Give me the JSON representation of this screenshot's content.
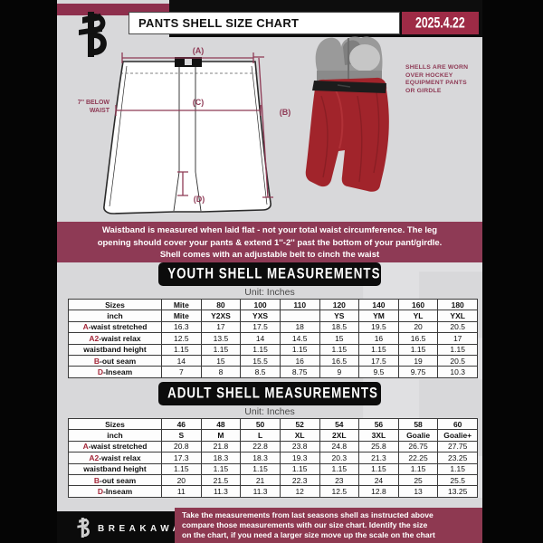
{
  "header": {
    "title": "PANTS SHELL SIZE CHART",
    "date": "2025.4.22"
  },
  "diagram": {
    "label_a": "(A)",
    "label_b": "(B)",
    "label_c": "(C)",
    "label_d": "(D)",
    "below_waist_lines": [
      "7'' BELOW",
      "WAIST"
    ],
    "shell_note_lines": [
      "SHELLS ARE WORN",
      "OVER HOCKEY",
      "EQUIPMENT PANTS",
      "OR GIRDLE"
    ]
  },
  "banner": {
    "lines": [
      "Waistband is measured when laid flat - not your total waist circumference. The leg",
      "opening should cover your pants & extend 1''-2'' past the bottom of your pant/girdle.",
      "Shell comes with an adjustable belt to cinch the waist"
    ]
  },
  "youth": {
    "heading": "YOUTH SHELL MEASUREMENTS",
    "unit": "Unit: Inches",
    "rows": [
      {
        "prefix": "",
        "label": "Sizes",
        "header": true,
        "values": [
          "Mite",
          "80",
          "100",
          "110",
          "120",
          "140",
          "160",
          "180"
        ]
      },
      {
        "prefix": "",
        "label": "inch",
        "header": true,
        "values": [
          "Mite",
          "Y2XS",
          "YXS",
          "",
          "YS",
          "YM",
          "YL",
          "YXL"
        ]
      },
      {
        "prefix": "A",
        "label": "-waist stretched",
        "header": false,
        "values": [
          "16.3",
          "17",
          "17.5",
          "18",
          "18.5",
          "19.5",
          "20",
          "20.5"
        ]
      },
      {
        "prefix": "A2",
        "label": "-waist relax",
        "header": false,
        "values": [
          "12.5",
          "13.5",
          "14",
          "14.5",
          "15",
          "16",
          "16.5",
          "17"
        ]
      },
      {
        "prefix": "",
        "label": "waistband height",
        "header": false,
        "values": [
          "1.15",
          "1.15",
          "1.15",
          "1.15",
          "1.15",
          "1.15",
          "1.15",
          "1.15"
        ]
      },
      {
        "prefix": "B",
        "label": "-out seam",
        "header": false,
        "values": [
          "14",
          "15",
          "15.5",
          "16",
          "16.5",
          "17.5",
          "19",
          "20.5"
        ]
      },
      {
        "prefix": "D",
        "label": "-Inseam",
        "header": false,
        "values": [
          "7",
          "8",
          "8.5",
          "8.75",
          "9",
          "9.5",
          "9.75",
          "10.3"
        ]
      }
    ]
  },
  "adult": {
    "heading": "ADULT SHELL MEASUREMENTS",
    "unit": "Unit: Inches",
    "rows": [
      {
        "prefix": "",
        "label": "Sizes",
        "header": true,
        "values": [
          "46",
          "48",
          "50",
          "52",
          "54",
          "56",
          "58",
          "60"
        ]
      },
      {
        "prefix": "",
        "label": "inch",
        "header": true,
        "values": [
          "S",
          "M",
          "L",
          "XL",
          "2XL",
          "3XL",
          "Goalie",
          "Goalie+"
        ]
      },
      {
        "prefix": "A",
        "label": "-waist stretched",
        "header": false,
        "values": [
          "20.8",
          "21.8",
          "22.8",
          "23.8",
          "24.8",
          "25.8",
          "26.75",
          "27.75"
        ]
      },
      {
        "prefix": "A2",
        "label": "-waist relax",
        "header": false,
        "values": [
          "17.3",
          "18.3",
          "18.3",
          "19.3",
          "20.3",
          "21.3",
          "22.25",
          "23.25"
        ]
      },
      {
        "prefix": "",
        "label": "waistband height",
        "header": false,
        "values": [
          "1.15",
          "1.15",
          "1.15",
          "1.15",
          "1.15",
          "1.15",
          "1.15",
          "1.15"
        ]
      },
      {
        "prefix": "B",
        "label": "-out seam",
        "header": false,
        "values": [
          "20",
          "21.5",
          "21",
          "22.3",
          "23",
          "24",
          "25",
          "25.5"
        ]
      },
      {
        "prefix": "D",
        "label": "-Inseam",
        "header": false,
        "values": [
          "11",
          "11.3",
          "11.3",
          "12",
          "12.5",
          "12.8",
          "13",
          "13.25"
        ]
      }
    ]
  },
  "footer": {
    "brand": "BREAKAWAY",
    "lines": [
      "Take the measurements from last seasons shell as instructed above",
      "compare those measurements  with our size chart. Identify the size",
      "on the chart, if you need a larger size move up the scale on the chart"
    ]
  },
  "colors": {
    "maroon": "#8e3a55",
    "date_maroon": "#9e2b46",
    "table_letter_red": "#a32638",
    "shell_red": "#a1242b",
    "page_gray": "#d8d8da",
    "black": "#0d0d0d"
  }
}
